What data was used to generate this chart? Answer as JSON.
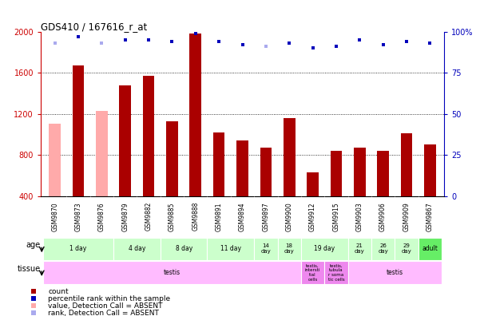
{
  "title": "GDS410 / 167616_r_at",
  "samples": [
    "GSM9870",
    "GSM9873",
    "GSM9876",
    "GSM9879",
    "GSM9882",
    "GSM9885",
    "GSM9888",
    "GSM9891",
    "GSM9894",
    "GSM9897",
    "GSM9900",
    "GSM9912",
    "GSM9915",
    "GSM9903",
    "GSM9906",
    "GSM9909",
    "GSM9867"
  ],
  "count_values": [
    1100,
    1670,
    1230,
    1480,
    1570,
    1130,
    1980,
    1020,
    940,
    870,
    1160,
    630,
    840,
    870,
    840,
    1010,
    900
  ],
  "count_absent": [
    true,
    false,
    true,
    false,
    false,
    false,
    false,
    false,
    false,
    false,
    false,
    false,
    false,
    false,
    false,
    false,
    false
  ],
  "rank_values": [
    93,
    97,
    93,
    95,
    95,
    94,
    99,
    94,
    92,
    91,
    93,
    90,
    91,
    95,
    92,
    94,
    93
  ],
  "rank_absent": [
    true,
    false,
    true,
    false,
    false,
    false,
    false,
    false,
    false,
    true,
    false,
    false,
    false,
    false,
    false,
    false,
    false
  ],
  "ylim_left": [
    400,
    2000
  ],
  "ylim_right": [
    0,
    100
  ],
  "yticks_left": [
    400,
    800,
    1200,
    1600,
    2000
  ],
  "yticks_right": [
    0,
    25,
    50,
    75,
    100
  ],
  "age_groups": [
    {
      "label": "1 day",
      "cols": [
        0,
        1,
        2
      ],
      "color": "#ccffcc"
    },
    {
      "label": "4 day",
      "cols": [
        3,
        4
      ],
      "color": "#ccffcc"
    },
    {
      "label": "8 day",
      "cols": [
        5,
        6
      ],
      "color": "#ccffcc"
    },
    {
      "label": "11 day",
      "cols": [
        7,
        8
      ],
      "color": "#ccffcc"
    },
    {
      "label": "14\nday",
      "cols": [
        9
      ],
      "color": "#ccffcc"
    },
    {
      "label": "18\nday",
      "cols": [
        10
      ],
      "color": "#ccffcc"
    },
    {
      "label": "19 day",
      "cols": [
        11,
        12
      ],
      "color": "#ccffcc"
    },
    {
      "label": "21\nday",
      "cols": [
        13
      ],
      "color": "#ccffcc"
    },
    {
      "label": "26\nday",
      "cols": [
        14
      ],
      "color": "#ccffcc"
    },
    {
      "label": "29\nday",
      "cols": [
        15
      ],
      "color": "#ccffcc"
    },
    {
      "label": "adult",
      "cols": [
        16
      ],
      "color": "#66ee66"
    }
  ],
  "tissue_groups": [
    {
      "label": "testis",
      "cols": [
        0,
        1,
        2,
        3,
        4,
        5,
        6,
        7,
        8,
        9,
        10
      ],
      "color": "#ffbbff"
    },
    {
      "label": "testis,\nintersti\ntial\ncells",
      "cols": [
        11
      ],
      "color": "#ee88ee"
    },
    {
      "label": "testis,\ntubula\nr soma\ntic cells",
      "cols": [
        12
      ],
      "color": "#ee88ee"
    },
    {
      "label": "testis",
      "cols": [
        13,
        14,
        15,
        16
      ],
      "color": "#ffbbff"
    }
  ],
  "bar_color_present": "#aa0000",
  "bar_color_absent": "#ffaaaa",
  "dot_color_present": "#0000bb",
  "dot_color_absent": "#aaaaee",
  "background_color": "#ffffff",
  "axis_left_color": "#cc0000",
  "axis_right_color": "#0000bb",
  "label_bg_color": "#dddddd"
}
